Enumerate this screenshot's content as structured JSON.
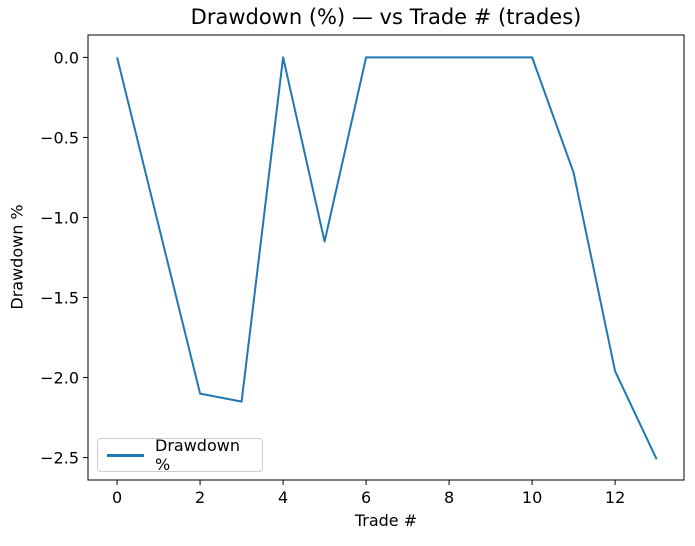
{
  "chart_data": {
    "type": "line",
    "title": "Drawdown (%) — vs Trade # (trades)",
    "xlabel": "Trade #",
    "ylabel": "Drawdown %",
    "legend_label": "Drawdown %",
    "legend_position": "lower left",
    "x": [
      0,
      1,
      2,
      3,
      4,
      5,
      6,
      7,
      8,
      9,
      10,
      11,
      12,
      13
    ],
    "values": [
      0.0,
      -1.05,
      -2.1,
      -2.15,
      0.0,
      -1.15,
      0.0,
      0.0,
      0.0,
      0.0,
      0.0,
      -0.72,
      -1.96,
      -2.51
    ],
    "xlim": [
      -0.7,
      13.66
    ],
    "ylim": [
      -2.64,
      0.14
    ],
    "xticks": [
      0,
      2,
      4,
      6,
      8,
      10,
      12
    ],
    "xtick_labels": [
      "0",
      "2",
      "4",
      "6",
      "8",
      "10",
      "12"
    ],
    "yticks": [
      0.0,
      -0.5,
      -1.0,
      -1.5,
      -2.0,
      -2.5
    ],
    "ytick_labels": [
      "0.0",
      "−0.5",
      "−1.0",
      "−1.5",
      "−2.0",
      "−2.5"
    ],
    "grid": false,
    "line_color": "#1f77b4",
    "line_width": 2,
    "colors": {
      "background": "#ffffff",
      "text": "#000000",
      "spine": "#000000",
      "legend_border": "#cccccc"
    }
  }
}
